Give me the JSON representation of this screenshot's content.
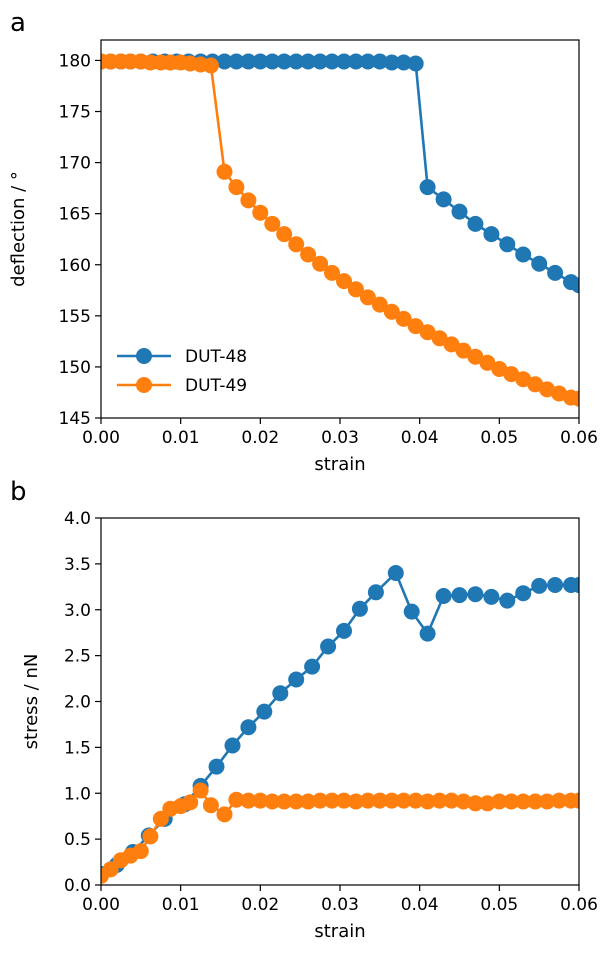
{
  "chart_data": [
    {
      "type": "line",
      "panel_label": "a",
      "xlabel": "strain",
      "ylabel": "deflection / °",
      "xlim": [
        0.0,
        0.06
      ],
      "ylim": [
        145,
        182
      ],
      "xticks": [
        0.0,
        0.01,
        0.02,
        0.03,
        0.04,
        0.05,
        0.06
      ],
      "xtick_labels": [
        "0.00",
        "0.01",
        "0.02",
        "0.03",
        "0.04",
        "0.05",
        "0.06"
      ],
      "yticks": [
        145,
        150,
        155,
        160,
        165,
        170,
        175,
        180
      ],
      "ytick_labels": [
        "145",
        "150",
        "155",
        "160",
        "165",
        "170",
        "175",
        "180"
      ],
      "grid": false,
      "legend": "lower-left",
      "series": [
        {
          "name": "DUT-48",
          "color": "#1f77b4",
          "x": [
            0.0,
            0.0012,
            0.0025,
            0.0037,
            0.005,
            0.0065,
            0.008,
            0.0095,
            0.011,
            0.0125,
            0.014,
            0.0155,
            0.017,
            0.0185,
            0.02,
            0.0215,
            0.023,
            0.0245,
            0.026,
            0.0275,
            0.029,
            0.0305,
            0.032,
            0.0335,
            0.035,
            0.0365,
            0.038,
            0.0395,
            0.041,
            0.043,
            0.045,
            0.047,
            0.049,
            0.051,
            0.053,
            0.055,
            0.057,
            0.059,
            0.06
          ],
          "y": [
            179.9,
            179.9,
            179.9,
            179.9,
            179.9,
            179.9,
            179.9,
            179.9,
            179.9,
            179.9,
            179.9,
            179.9,
            179.9,
            179.9,
            179.9,
            179.9,
            179.9,
            179.9,
            179.9,
            179.9,
            179.9,
            179.9,
            179.9,
            179.9,
            179.9,
            179.8,
            179.8,
            179.7,
            167.6,
            166.4,
            165.2,
            164.0,
            163.0,
            162.0,
            161.0,
            160.1,
            159.2,
            158.3,
            158.0
          ]
        },
        {
          "name": "DUT-49",
          "color": "#ff7f0e",
          "x": [
            0.0,
            0.0012,
            0.0025,
            0.0037,
            0.005,
            0.0062,
            0.0075,
            0.0087,
            0.01,
            0.0112,
            0.0125,
            0.0138,
            0.0155,
            0.017,
            0.0185,
            0.02,
            0.0215,
            0.023,
            0.0245,
            0.026,
            0.0275,
            0.029,
            0.0305,
            0.032,
            0.0335,
            0.035,
            0.0365,
            0.038,
            0.0395,
            0.041,
            0.0425,
            0.044,
            0.0455,
            0.047,
            0.0485,
            0.05,
            0.0515,
            0.053,
            0.0545,
            0.056,
            0.0575,
            0.059,
            0.06
          ],
          "y": [
            179.9,
            179.9,
            179.9,
            179.9,
            179.9,
            179.8,
            179.8,
            179.8,
            179.8,
            179.7,
            179.6,
            179.5,
            169.1,
            167.6,
            166.3,
            165.1,
            164.0,
            163.0,
            162.0,
            161.0,
            160.1,
            159.2,
            158.4,
            157.6,
            156.8,
            156.1,
            155.4,
            154.7,
            154.0,
            153.4,
            152.8,
            152.2,
            151.6,
            151.0,
            150.4,
            149.8,
            149.3,
            148.8,
            148.3,
            147.8,
            147.4,
            147.0,
            146.9
          ]
        }
      ]
    },
    {
      "type": "line",
      "panel_label": "b",
      "xlabel": "strain",
      "ylabel": "stress / nN",
      "xlim": [
        0.0,
        0.06
      ],
      "ylim": [
        0.0,
        4.0
      ],
      "xticks": [
        0.0,
        0.01,
        0.02,
        0.03,
        0.04,
        0.05,
        0.06
      ],
      "xtick_labels": [
        "0.00",
        "0.01",
        "0.02",
        "0.03",
        "0.04",
        "0.05",
        "0.06"
      ],
      "yticks": [
        0.0,
        0.5,
        1.0,
        1.5,
        2.0,
        2.5,
        3.0,
        3.5,
        4.0
      ],
      "ytick_labels": [
        "0.0",
        "0.5",
        "1.0",
        "1.5",
        "2.0",
        "2.5",
        "3.0",
        "3.5",
        "4.0"
      ],
      "grid": false,
      "series": [
        {
          "name": "DUT-48",
          "color": "#1f77b4",
          "x": [
            0.0,
            0.002,
            0.004,
            0.006,
            0.008,
            0.0105,
            0.0125,
            0.0145,
            0.0165,
            0.0185,
            0.0205,
            0.0225,
            0.0245,
            0.0265,
            0.0285,
            0.0305,
            0.0325,
            0.0345,
            0.037,
            0.039,
            0.041,
            0.043,
            0.045,
            0.047,
            0.049,
            0.051,
            0.053,
            0.055,
            0.057,
            0.059,
            0.06
          ],
          "y": [
            0.12,
            0.22,
            0.36,
            0.54,
            0.72,
            0.88,
            1.08,
            1.29,
            1.52,
            1.72,
            1.89,
            2.09,
            2.24,
            2.38,
            2.6,
            2.77,
            3.01,
            3.19,
            3.4,
            2.98,
            2.74,
            3.15,
            3.16,
            3.17,
            3.14,
            3.1,
            3.18,
            3.26,
            3.27,
            3.27,
            3.27
          ]
        },
        {
          "name": "DUT-49",
          "color": "#ff7f0e",
          "x": [
            0.0,
            0.0012,
            0.0025,
            0.0037,
            0.005,
            0.0062,
            0.0075,
            0.0087,
            0.01,
            0.0112,
            0.0125,
            0.0138,
            0.0155,
            0.017,
            0.0185,
            0.02,
            0.0215,
            0.023,
            0.0245,
            0.026,
            0.0275,
            0.029,
            0.0305,
            0.032,
            0.0335,
            0.035,
            0.0365,
            0.038,
            0.0395,
            0.041,
            0.0425,
            0.044,
            0.0455,
            0.047,
            0.0485,
            0.05,
            0.0515,
            0.053,
            0.0545,
            0.056,
            0.0575,
            0.059,
            0.06
          ],
          "y": [
            0.1,
            0.17,
            0.27,
            0.32,
            0.37,
            0.53,
            0.72,
            0.83,
            0.86,
            0.9,
            1.03,
            0.87,
            0.77,
            0.93,
            0.92,
            0.92,
            0.91,
            0.91,
            0.91,
            0.91,
            0.92,
            0.92,
            0.92,
            0.91,
            0.92,
            0.92,
            0.92,
            0.92,
            0.92,
            0.91,
            0.92,
            0.92,
            0.91,
            0.89,
            0.89,
            0.91,
            0.91,
            0.91,
            0.91,
            0.91,
            0.92,
            0.92,
            0.92
          ]
        }
      ]
    }
  ]
}
